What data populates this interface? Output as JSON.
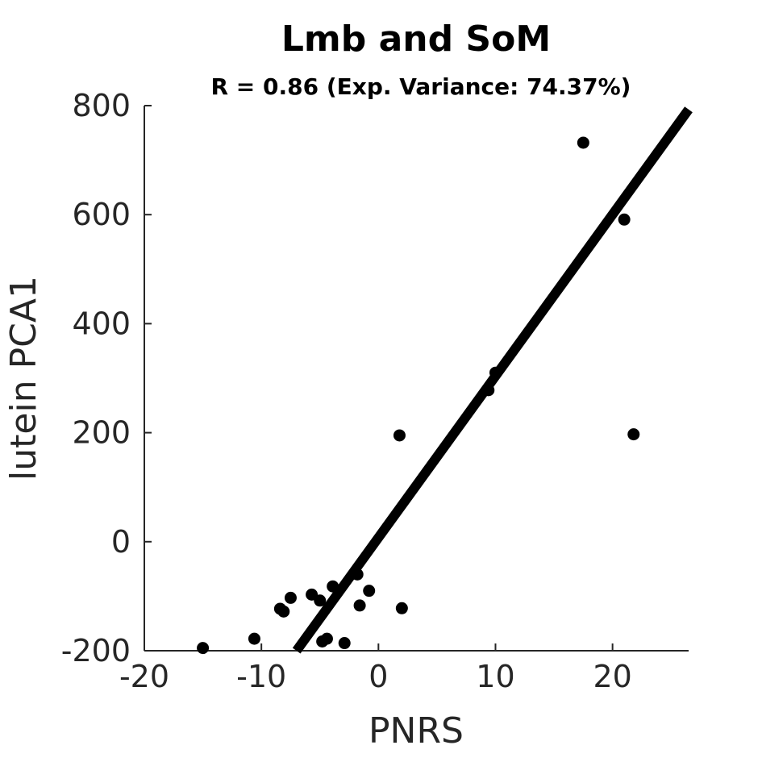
{
  "chart_data": {
    "type": "scatter",
    "title": "Lmb and SoM",
    "subtitle": "R = 0.86 (Exp. Variance: 74.37%)",
    "xlabel": "PNRS",
    "ylabel": "lutein PCA1",
    "xlim": [
      -20,
      26.5
    ],
    "ylim": [
      -200,
      800
    ],
    "xticks": [
      "-20",
      "-10",
      "0",
      "10",
      "20"
    ],
    "yticks": [
      "800",
      "600",
      "400",
      "200",
      "0",
      "-200"
    ],
    "points": [
      {
        "x": -15.0,
        "y": -195
      },
      {
        "x": -10.6,
        "y": -178
      },
      {
        "x": -8.4,
        "y": -123
      },
      {
        "x": -8.1,
        "y": -128
      },
      {
        "x": -7.5,
        "y": -103
      },
      {
        "x": -5.7,
        "y": -97
      },
      {
        "x": -5.0,
        "y": -108
      },
      {
        "x": -4.8,
        "y": -183
      },
      {
        "x": -4.4,
        "y": -178
      },
      {
        "x": -3.9,
        "y": -82
      },
      {
        "x": -2.9,
        "y": -186
      },
      {
        "x": -1.8,
        "y": -60
      },
      {
        "x": -1.6,
        "y": -117
      },
      {
        "x": -0.8,
        "y": -90
      },
      {
        "x": 1.8,
        "y": 195
      },
      {
        "x": 2.0,
        "y": -122
      },
      {
        "x": 9.4,
        "y": 278
      },
      {
        "x": 10.0,
        "y": 310
      },
      {
        "x": 17.5,
        "y": 732
      },
      {
        "x": 21.0,
        "y": 591
      },
      {
        "x": 21.8,
        "y": 197
      }
    ],
    "fit_line": {
      "x": [
        -7.0,
        26.5
      ],
      "y": [
        -200,
        793
      ]
    },
    "colors": {
      "points": "#000000",
      "fit_line": "#000000",
      "axes": "#262626"
    },
    "grid": false,
    "legend": "none"
  }
}
